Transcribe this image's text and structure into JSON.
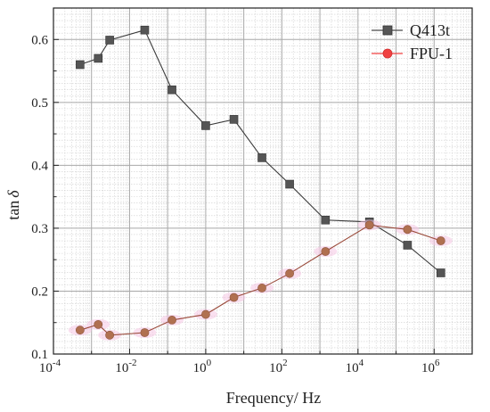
{
  "chart_data": {
    "type": "line",
    "x_scale": "log",
    "xlabel": "Frequency/ Hz",
    "ylabel": "tan",
    "ylabel_symbol": "δ",
    "xlim": [
      0.0001,
      10000000
    ],
    "ylim": [
      0.1,
      0.65
    ],
    "grid": true,
    "legend_position": "top-right",
    "x_tick_labels": [
      {
        "base": "10",
        "exp": "-4",
        "value": 0.0001
      },
      {
        "base": "10",
        "exp": "-2",
        "value": 0.01
      },
      {
        "base": "10",
        "exp": "0",
        "value": 1
      },
      {
        "base": "10",
        "exp": "2",
        "value": 100
      },
      {
        "base": "10",
        "exp": "4",
        "value": 10000
      },
      {
        "base": "10",
        "exp": "6",
        "value": 1000000
      }
    ],
    "y_ticks": [
      0.1,
      0.2,
      0.3,
      0.4,
      0.5,
      0.6
    ],
    "y_tick_labels": [
      "0.1",
      "0.2",
      "0.3",
      "0.4",
      "0.5",
      "0.6"
    ],
    "series": [
      {
        "name": "Q413t",
        "marker": "square",
        "color": "#4a4a4a",
        "x": [
          0.0005,
          0.0015,
          0.003,
          0.025,
          0.13,
          1,
          5.5,
          30,
          160,
          1400,
          20000,
          200000,
          1500000
        ],
        "y": [
          0.56,
          0.57,
          0.599,
          0.615,
          0.52,
          0.463,
          0.473,
          0.412,
          0.37,
          0.313,
          0.31,
          0.273,
          0.229
        ]
      },
      {
        "name": "FPU-1",
        "marker": "circle",
        "color": "#f04040",
        "x": [
          0.0005,
          0.0015,
          0.003,
          0.025,
          0.13,
          1,
          5.5,
          30,
          160,
          1400,
          20000,
          200000,
          1500000
        ],
        "y": [
          0.138,
          0.147,
          0.13,
          0.134,
          0.154,
          0.163,
          0.19,
          0.205,
          0.228,
          0.263,
          0.305,
          0.298,
          0.28
        ]
      }
    ]
  }
}
